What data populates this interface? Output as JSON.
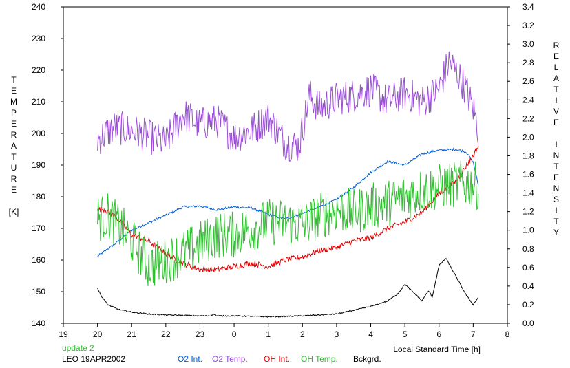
{
  "chart_data": {
    "type": "line",
    "xlabel": "Local Standard Time [h]",
    "ylabel_left": [
      "T",
      "E",
      "M",
      "P",
      "E",
      "R",
      "A",
      "T",
      "U",
      "R",
      "E",
      "",
      "[K]"
    ],
    "ylabel_right": [
      "R",
      "E",
      "L",
      "A",
      "T",
      "I",
      "V",
      "E",
      "",
      "I",
      "N",
      "T",
      "E",
      "N",
      "S",
      "I",
      "T",
      "Y"
    ],
    "xticks": [
      19,
      20,
      21,
      22,
      23,
      0,
      1,
      2,
      3,
      4,
      5,
      6,
      7,
      8
    ],
    "xlim": [
      19,
      32
    ],
    "ylim_left": [
      140,
      240
    ],
    "yticks_left": [
      140,
      150,
      160,
      170,
      180,
      190,
      200,
      210,
      220,
      230,
      240
    ],
    "ylim_right": [
      0.0,
      3.4
    ],
    "yticks_right": [
      "0.0",
      "0.2",
      "0.4",
      "0.6",
      "0.8",
      "1.0",
      "1.2",
      "1.4",
      "1.6",
      "1.8",
      "2.0",
      "2.2",
      "2.4",
      "2.6",
      "2.8",
      "3.0",
      "3.2",
      "3.4"
    ],
    "grid": false,
    "status": "update 2",
    "station": "LEO 19APR2002",
    "colors": {
      "o2int": "#0060e0",
      "o2temp": "#9a4fd6",
      "ohint": "#e00000",
      "ohtemp": "#30c030",
      "bck": "#000000",
      "status": "#30c030"
    },
    "series": [
      {
        "name": "O2 Int.",
        "axis": "right",
        "noise": 0.012,
        "x": [
          20.0,
          20.5,
          21.0,
          21.5,
          22.0,
          22.5,
          23.0,
          23.5,
          24.0,
          24.5,
          25.0,
          25.5,
          26.0,
          26.5,
          27.0,
          27.5,
          28.0,
          28.5,
          29.0,
          29.5,
          30.0,
          30.5,
          30.8,
          31.0,
          31.15
        ],
        "y": [
          0.72,
          0.85,
          1.0,
          1.08,
          1.16,
          1.25,
          1.26,
          1.22,
          1.25,
          1.24,
          1.17,
          1.12,
          1.18,
          1.25,
          1.33,
          1.46,
          1.62,
          1.74,
          1.7,
          1.82,
          1.86,
          1.87,
          1.84,
          1.73,
          1.48
        ]
      },
      {
        "name": "O2 Temp.",
        "axis": "left",
        "noise": 5.5,
        "x": [
          20.0,
          20.5,
          21.0,
          21.5,
          22.0,
          22.5,
          23.0,
          23.5,
          24.0,
          24.5,
          25.0,
          25.5,
          25.9,
          26.2,
          26.5,
          27.0,
          27.5,
          28.0,
          28.5,
          29.0,
          29.5,
          30.0,
          30.3,
          30.7,
          31.0,
          31.15
        ],
        "y": [
          198,
          202,
          201,
          199,
          197,
          206,
          203,
          204,
          199,
          201,
          205,
          197,
          196,
          212,
          208,
          211,
          212,
          214,
          210,
          213,
          210,
          214,
          223,
          216,
          208,
          201
        ]
      },
      {
        "name": "OH Int.",
        "axis": "left",
        "noise": 0.9,
        "x": [
          20.0,
          20.2,
          20.5,
          21.0,
          21.5,
          22.0,
          22.5,
          23.0,
          23.5,
          24.0,
          24.5,
          25.0,
          25.5,
          26.0,
          26.5,
          27.0,
          27.5,
          28.0,
          28.5,
          29.0,
          29.5,
          30.0,
          30.5,
          31.0,
          31.15
        ],
        "y": [
          176,
          176,
          174,
          168,
          166,
          162,
          159,
          157,
          157,
          158,
          159,
          158,
          160,
          161,
          163,
          164,
          166,
          167,
          170,
          172,
          175,
          181,
          185,
          193,
          196
        ]
      },
      {
        "name": "OH Temp.",
        "axis": "left",
        "noise": 7.5,
        "x": [
          20.0,
          20.3,
          20.7,
          21.0,
          21.5,
          22.0,
          22.5,
          23.0,
          23.5,
          24.0,
          24.5,
          25.0,
          25.5,
          26.0,
          26.5,
          27.0,
          27.5,
          28.0,
          28.5,
          29.0,
          29.5,
          30.0,
          30.5,
          31.0,
          31.15
        ],
        "y": [
          173,
          174,
          170,
          166,
          158,
          160,
          162,
          165,
          168,
          168,
          170,
          172,
          172,
          171,
          174,
          176,
          175,
          177,
          178,
          180,
          182,
          183,
          184,
          184,
          183
        ]
      },
      {
        "name": "Bckgrd.",
        "axis": "right",
        "noise": 0.006,
        "x": [
          20.0,
          20.1,
          20.3,
          20.6,
          21.0,
          21.5,
          22.0,
          23.0,
          23.3,
          23.4,
          23.5,
          24.0,
          25.0,
          26.0,
          27.0,
          27.5,
          28.0,
          28.5,
          28.8,
          29.0,
          29.2,
          29.4,
          29.5,
          29.6,
          29.7,
          29.8,
          30.0,
          30.2,
          30.5,
          30.8,
          31.0,
          31.15
        ],
        "y": [
          0.38,
          0.3,
          0.2,
          0.15,
          0.12,
          0.1,
          0.09,
          0.08,
          0.08,
          0.1,
          0.08,
          0.08,
          0.07,
          0.08,
          0.1,
          0.14,
          0.18,
          0.24,
          0.32,
          0.42,
          0.35,
          0.28,
          0.24,
          0.3,
          0.35,
          0.28,
          0.62,
          0.7,
          0.5,
          0.3,
          0.2,
          0.28
        ]
      }
    ]
  }
}
